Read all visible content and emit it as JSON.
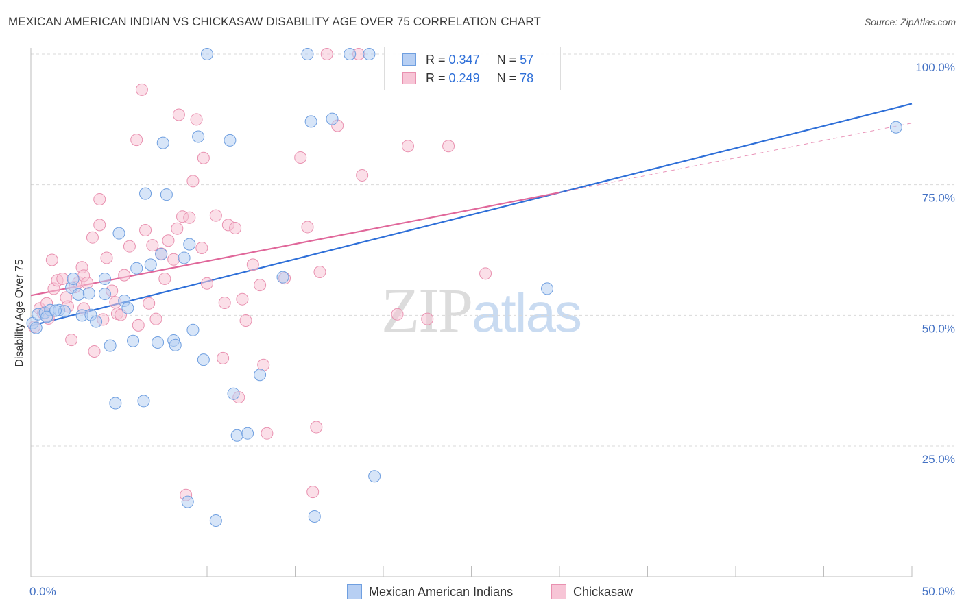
{
  "title": "MEXICAN AMERICAN INDIAN VS CHICKASAW DISABILITY AGE OVER 75 CORRELATION CHART",
  "source": "Source: ZipAtlas.com",
  "watermark": {
    "part1": "ZIP",
    "part2": "atlas"
  },
  "legend": {
    "rows": [
      {
        "r_label": "R =",
        "r_value": "0.347",
        "n_label": "N =",
        "n_value": "57"
      },
      {
        "r_label": "R =",
        "r_value": "0.249",
        "n_label": "N =",
        "n_value": "78"
      }
    ]
  },
  "bottom_legend": [
    "Mexican American Indians",
    "Chickasaw"
  ],
  "colors": {
    "blue_fill": "#b7cff3",
    "blue_stroke": "#6f9fe0",
    "blue_line": "#2e6fd8",
    "pink_fill": "#f7c5d6",
    "pink_stroke": "#e991b0",
    "pink_line": "#e0679a",
    "grid": "#d9d9d9",
    "tick_text": "#4472c4"
  },
  "chart_data": {
    "type": "scatter",
    "title": "MEXICAN AMERICAN INDIAN VS CHICKASAW DISABILITY AGE OVER 75 CORRELATION CHART",
    "xlabel": "",
    "ylabel": "Disability Age Over 75",
    "xlim": [
      0,
      50
    ],
    "ylim": [
      0,
      105
    ],
    "x_tick_labels": [
      "0.0%",
      "50.0%"
    ],
    "y_ticks": [
      25,
      50,
      75,
      100
    ],
    "y_tick_labels": [
      "25.0%",
      "50.0%",
      "75.0%",
      "100.0%"
    ],
    "grid": true,
    "legend_position": "top-center",
    "series": [
      {
        "name": "Mexican American Indians",
        "color": "#6f9fe0",
        "trend": {
          "x": [
            0,
            50
          ],
          "y": [
            48.0,
            90.5
          ]
        },
        "points": [
          [
            0.1,
            48.5
          ],
          [
            0.4,
            50.2
          ],
          [
            0.8,
            50.5
          ],
          [
            1.1,
            51.0
          ],
          [
            1.6,
            51.0
          ],
          [
            1.9,
            50.8
          ],
          [
            2.3,
            55.3
          ],
          [
            2.4,
            57.0
          ],
          [
            2.7,
            54.0
          ],
          [
            2.9,
            50.0
          ],
          [
            3.3,
            54.2
          ],
          [
            3.4,
            50.1
          ],
          [
            3.7,
            48.8
          ],
          [
            4.2,
            54.1
          ],
          [
            4.2,
            57.0
          ],
          [
            4.5,
            44.2
          ],
          [
            4.8,
            33.2
          ],
          [
            5.0,
            65.7
          ],
          [
            5.3,
            52.8
          ],
          [
            5.5,
            51.4
          ],
          [
            5.8,
            45.1
          ],
          [
            6.0,
            59.0
          ],
          [
            6.4,
            33.6
          ],
          [
            6.5,
            73.3
          ],
          [
            6.8,
            59.7
          ],
          [
            7.2,
            44.8
          ],
          [
            7.4,
            61.7
          ],
          [
            7.5,
            83.0
          ],
          [
            7.7,
            73.1
          ],
          [
            8.1,
            45.2
          ],
          [
            8.2,
            44.3
          ],
          [
            8.7,
            61.0
          ],
          [
            8.9,
            14.3
          ],
          [
            9.0,
            63.6
          ],
          [
            9.2,
            47.2
          ],
          [
            9.5,
            84.2
          ],
          [
            9.8,
            41.5
          ],
          [
            10.0,
            100.0
          ],
          [
            10.5,
            10.7
          ],
          [
            11.3,
            83.5
          ],
          [
            11.5,
            35.0
          ],
          [
            11.7,
            27.0
          ],
          [
            12.3,
            27.4
          ],
          [
            13.0,
            38.6
          ],
          [
            14.3,
            57.3
          ],
          [
            15.7,
            100.0
          ],
          [
            15.9,
            87.1
          ],
          [
            16.1,
            11.5
          ],
          [
            17.1,
            87.6
          ],
          [
            18.1,
            100.0
          ],
          [
            19.2,
            100.0
          ],
          [
            19.5,
            19.2
          ],
          [
            29.3,
            55.1
          ],
          [
            49.1,
            86.0
          ],
          [
            0.3,
            47.6
          ],
          [
            0.9,
            49.7
          ],
          [
            1.4,
            50.9
          ]
        ]
      },
      {
        "name": "Chickasaw",
        "color": "#e991b0",
        "trend": {
          "x": [
            0,
            30
          ],
          "y": [
            53.8,
            73.5
          ]
        },
        "trend_extension": {
          "x": [
            30,
            50
          ],
          "y": [
            73.5,
            86.8
          ]
        },
        "points": [
          [
            0.2,
            47.8
          ],
          [
            0.5,
            51.3
          ],
          [
            0.7,
            50.4
          ],
          [
            0.9,
            52.3
          ],
          [
            1.2,
            60.6
          ],
          [
            1.3,
            55.1
          ],
          [
            1.5,
            56.7
          ],
          [
            1.8,
            57.0
          ],
          [
            2.1,
            51.7
          ],
          [
            2.3,
            45.3
          ],
          [
            2.5,
            55.4
          ],
          [
            2.7,
            56.3
          ],
          [
            2.9,
            59.2
          ],
          [
            3.0,
            57.6
          ],
          [
            3.2,
            56.2
          ],
          [
            3.5,
            64.9
          ],
          [
            3.6,
            43.1
          ],
          [
            3.9,
            72.2
          ],
          [
            3.9,
            67.3
          ],
          [
            4.1,
            49.2
          ],
          [
            4.3,
            61.0
          ],
          [
            4.6,
            54.7
          ],
          [
            4.8,
            52.5
          ],
          [
            4.9,
            50.3
          ],
          [
            5.1,
            50.1
          ],
          [
            5.3,
            57.7
          ],
          [
            5.6,
            63.2
          ],
          [
            6.0,
            83.6
          ],
          [
            6.1,
            48.1
          ],
          [
            6.3,
            93.2
          ],
          [
            6.5,
            66.3
          ],
          [
            6.7,
            52.3
          ],
          [
            6.9,
            63.4
          ],
          [
            7.1,
            49.3
          ],
          [
            7.4,
            61.8
          ],
          [
            7.6,
            57.0
          ],
          [
            7.8,
            64.3
          ],
          [
            8.1,
            60.7
          ],
          [
            8.3,
            66.6
          ],
          [
            8.4,
            88.4
          ],
          [
            8.6,
            68.9
          ],
          [
            8.8,
            15.6
          ],
          [
            9.0,
            68.7
          ],
          [
            9.2,
            75.7
          ],
          [
            9.4,
            87.5
          ],
          [
            9.7,
            62.9
          ],
          [
            9.8,
            80.1
          ],
          [
            10.0,
            56.1
          ],
          [
            10.5,
            69.1
          ],
          [
            10.9,
            41.8
          ],
          [
            11.0,
            52.4
          ],
          [
            11.2,
            67.3
          ],
          [
            11.6,
            66.7
          ],
          [
            11.8,
            34.3
          ],
          [
            12.0,
            53.1
          ],
          [
            12.2,
            49.0
          ],
          [
            12.6,
            59.7
          ],
          [
            13.0,
            55.8
          ],
          [
            13.2,
            40.5
          ],
          [
            13.4,
            27.4
          ],
          [
            14.4,
            57.1
          ],
          [
            15.3,
            80.2
          ],
          [
            15.7,
            66.9
          ],
          [
            16.2,
            28.6
          ],
          [
            16.4,
            58.3
          ],
          [
            16.8,
            100.0
          ],
          [
            17.4,
            86.3
          ],
          [
            18.6,
            100.0
          ],
          [
            18.8,
            76.8
          ],
          [
            20.8,
            50.2
          ],
          [
            21.4,
            82.4
          ],
          [
            22.5,
            49.3
          ],
          [
            23.7,
            82.4
          ],
          [
            25.8,
            58.0
          ],
          [
            16.0,
            16.2
          ],
          [
            1.0,
            49.4
          ],
          [
            2.0,
            53.4
          ],
          [
            3.0,
            51.3
          ]
        ]
      }
    ]
  }
}
